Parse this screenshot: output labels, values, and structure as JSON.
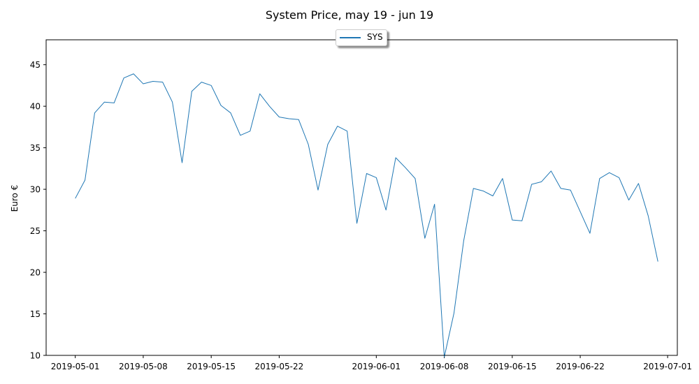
{
  "chart_data": {
    "type": "line",
    "title": "System Price, may 19 - jun 19",
    "xlabel": "",
    "ylabel": "Euro €",
    "xlim": [
      "2019-04-28",
      "2019-07-02"
    ],
    "ylim": [
      10,
      48
    ],
    "x_ticks": [
      "2019-05-01",
      "2019-05-08",
      "2019-05-15",
      "2019-05-22",
      "2019-06-01",
      "2019-06-08",
      "2019-06-15",
      "2019-06-22",
      "2019-07-01"
    ],
    "y_ticks": [
      10,
      15,
      20,
      25,
      30,
      35,
      40,
      45
    ],
    "grid": false,
    "legend_position": "top-center",
    "series": [
      {
        "name": "SYS",
        "color": "#1f77b4",
        "start_date": "2019-05-01",
        "values": [
          28.9,
          31.1,
          39.2,
          40.5,
          40.4,
          43.4,
          43.9,
          42.7,
          43.0,
          42.9,
          40.5,
          33.2,
          41.8,
          42.9,
          42.5,
          40.1,
          39.2,
          36.5,
          37.0,
          41.5,
          40.0,
          38.7,
          38.5,
          38.4,
          35.4,
          29.9,
          35.4,
          37.6,
          37.0,
          25.9,
          31.9,
          31.4,
          27.5,
          33.8,
          32.6,
          31.3,
          24.1,
          28.2,
          9.8,
          15.1,
          23.8,
          30.1,
          29.8,
          29.2,
          31.3,
          26.3,
          26.2,
          30.6,
          30.9,
          32.2,
          30.1,
          29.9,
          27.3,
          24.7,
          31.3,
          32.0,
          31.4,
          28.7,
          30.7,
          26.8,
          21.3
        ]
      }
    ]
  }
}
